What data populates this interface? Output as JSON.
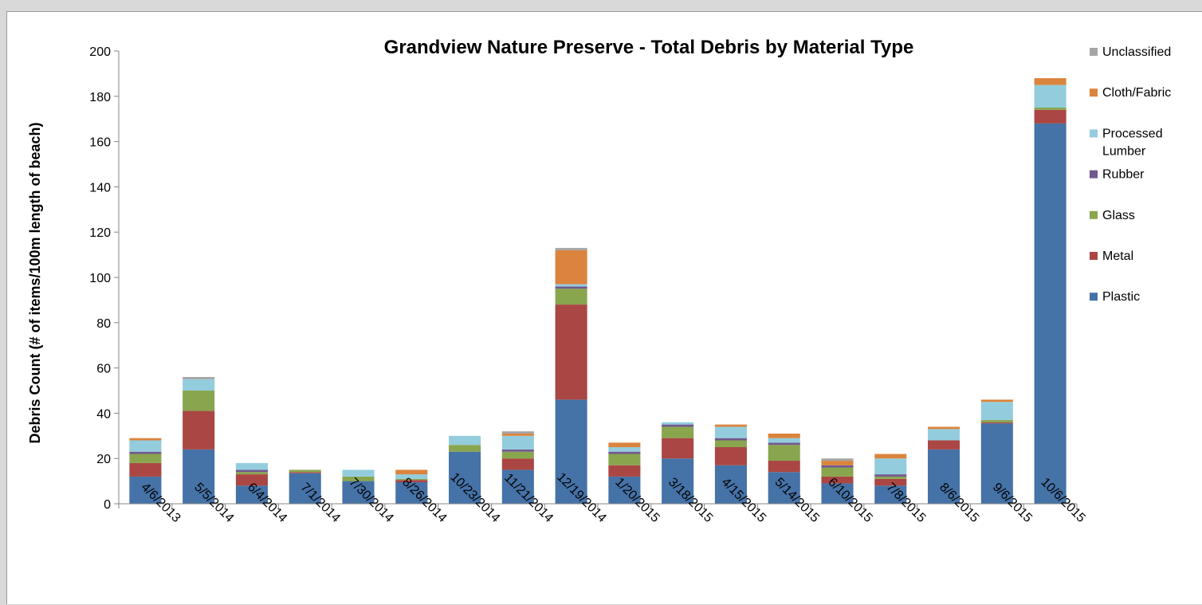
{
  "chart_data": {
    "type": "bar",
    "stacked": true,
    "title": "Grandview Nature Preserve - Total Debris by Material Type",
    "xlabel": "",
    "ylabel": "Debris Count (# of items/100m length of beach)",
    "ylim": [
      0,
      200
    ],
    "yticks": [
      0,
      20,
      40,
      60,
      80,
      100,
      120,
      140,
      160,
      180,
      200
    ],
    "grid": false,
    "legend_position": "right",
    "categories": [
      "4/6/2013",
      "5/5/2014",
      "6/4/2014",
      "7/1/2014",
      "7/30/2014",
      "8/26/2014",
      "10/23/2014",
      "11/21/2014",
      "12/19/2014",
      "1/20/2015",
      "3/18/2015",
      "4/15/2015",
      "5/14/2015",
      "6/10/2015",
      "7/8/2015",
      "8/6/2015",
      "9/6/2015",
      "10/6/2015"
    ],
    "series": [
      {
        "name": "Plastic",
        "color": "#4572a7",
        "values": [
          12,
          24,
          8,
          13.5,
          10,
          9.5,
          23,
          15,
          46,
          12,
          20,
          17,
          14,
          9,
          8,
          24,
          35.5,
          168
        ]
      },
      {
        "name": "Metal",
        "color": "#aa4643",
        "values": [
          6,
          17,
          5,
          0.5,
          0,
          1,
          0,
          5,
          42,
          5,
          9,
          8,
          5,
          3,
          3,
          4,
          0.5,
          6
        ]
      },
      {
        "name": "Glass",
        "color": "#89a54e",
        "values": [
          4,
          9,
          1,
          1,
          2,
          0.5,
          3,
          3,
          7,
          5,
          5,
          3,
          7,
          4,
          1,
          0,
          1,
          1
        ]
      },
      {
        "name": "Rubber",
        "color": "#71588f",
        "values": [
          1,
          0,
          1,
          0,
          0,
          0,
          0,
          1,
          1,
          1,
          1,
          1,
          1,
          1,
          1,
          0,
          0,
          0
        ]
      },
      {
        "name": "Processed Lumber",
        "color": "#93cddd",
        "values": [
          5,
          5,
          3,
          0,
          3,
          2,
          4,
          6,
          1,
          2,
          1,
          5,
          2,
          0,
          7,
          5,
          8,
          10
        ]
      },
      {
        "name": "Cloth/Fabric",
        "color": "#db843d",
        "values": [
          1,
          0,
          0,
          0,
          0,
          2,
          0,
          1,
          15,
          2,
          0,
          1,
          2,
          2,
          2,
          1,
          1,
          3
        ]
      },
      {
        "name": "Unclassified",
        "color": "#a5a5a5",
        "values": [
          0,
          1,
          0,
          0,
          0,
          0,
          0,
          1,
          1,
          0,
          0,
          0,
          0,
          1,
          0,
          0,
          0,
          0
        ]
      }
    ]
  }
}
